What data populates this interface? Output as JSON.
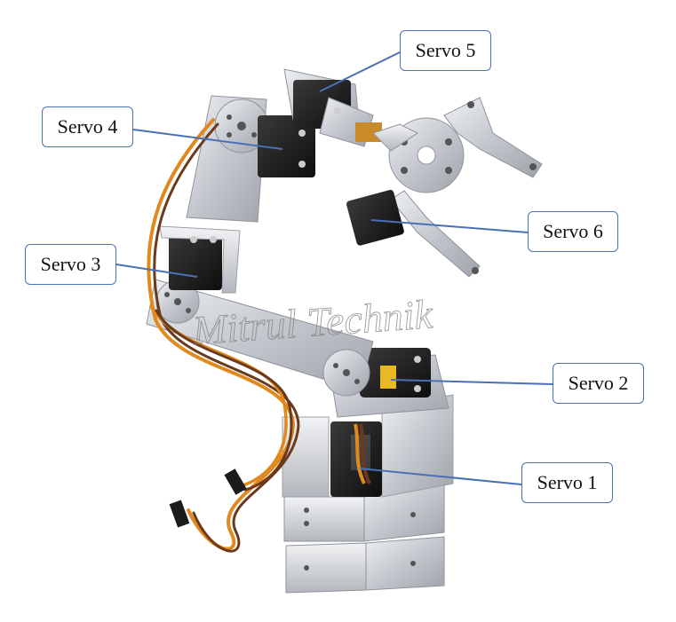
{
  "callouts": [
    {
      "id": "servo5",
      "label": "Servo 5"
    },
    {
      "id": "servo4",
      "label": "Servo 4"
    },
    {
      "id": "servo6",
      "label": "Servo 6"
    },
    {
      "id": "servo3",
      "label": "Servo 3"
    },
    {
      "id": "servo2",
      "label": "Servo 2"
    },
    {
      "id": "servo1",
      "label": "Servo 1"
    }
  ],
  "watermark": "Mitrul Technik",
  "colors": {
    "callout_border": "#4a70b5",
    "leader_line": "#4a70b5",
    "aluminum": "#c9ccd1",
    "servo_body": "#1b1b1b",
    "wire_orange": "#e0891f",
    "wire_brown": "#6b3a1c"
  }
}
